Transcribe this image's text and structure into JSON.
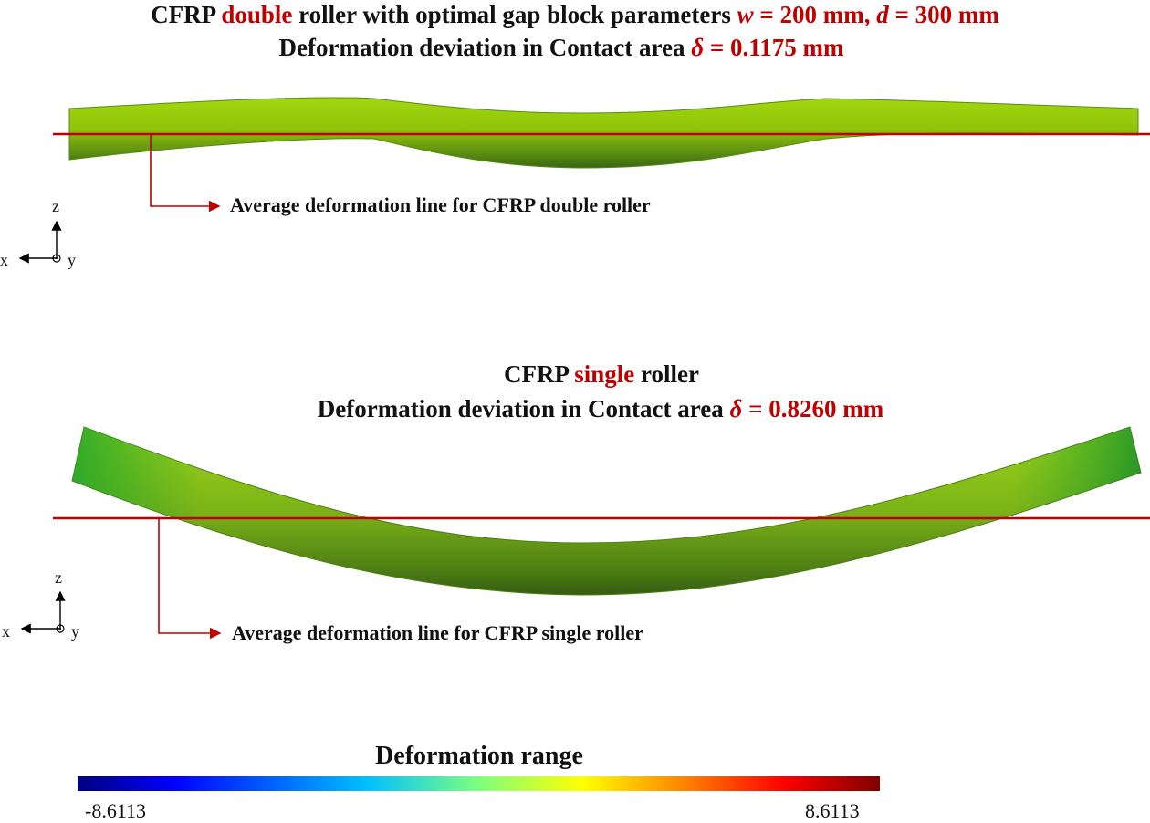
{
  "top": {
    "title1": {
      "prefix": "CFRP ",
      "highlight": "double",
      "middle": " roller with optimal gap block parameters ",
      "w_sym": "w",
      "w_val": " = 200 mm,",
      "d_sym": "d",
      "d_val": " = 300 mm"
    },
    "title2": {
      "text": "Deformation deviation in Contact area ",
      "delta_sym": "δ",
      "delta_val": " = 0.1175 mm"
    },
    "annotation": "Average deformation line for CFRP double roller",
    "axes": {
      "z": "z",
      "x": "x",
      "y": "y"
    }
  },
  "bottom": {
    "title1": {
      "prefix": "CFRP ",
      "highlight": "single",
      "suffix": " roller"
    },
    "title2": {
      "text": "Deformation deviation in Contact area ",
      "delta_sym": "δ",
      "delta_val": " = 0.8260 mm"
    },
    "annotation": "Average deformation line for CFRP single roller",
    "axes": {
      "z": "z",
      "x": "x",
      "y": "y"
    }
  },
  "colorbar": {
    "title": "Deformation range",
    "min": "-8.6113",
    "max": "8.6113",
    "colors": [
      "#00007f",
      "#0000ff",
      "#00bfff",
      "#7fff7f",
      "#ffff00",
      "#ff7f00",
      "#ff0000",
      "#7f0000"
    ]
  },
  "colors": {
    "accent_red": "#c00000",
    "roller_light": "#a6dc0c",
    "roller_dark": "#3c6b12",
    "single_roller_edge": "#1fa02a"
  }
}
